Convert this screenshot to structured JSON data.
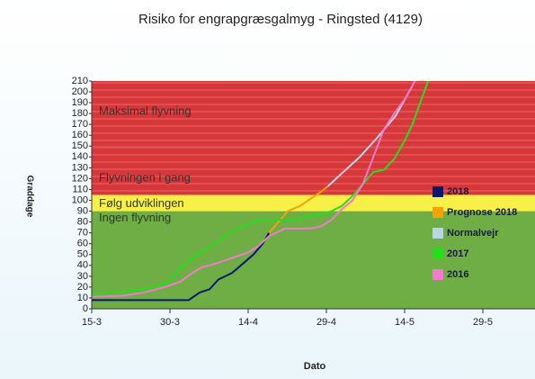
{
  "chart_data": {
    "type": "line",
    "title": "Risiko for engrapgræsgalmyg - Ringsted (4129)",
    "y_label": "Graddage",
    "x_label": "Dato",
    "xlim": [
      0,
      85
    ],
    "xticks": [
      {
        "value": 0,
        "label": "15-3"
      },
      {
        "value": 15,
        "label": "30-3"
      },
      {
        "value": 30,
        "label": "14-4"
      },
      {
        "value": 45,
        "label": "29-4"
      },
      {
        "value": 60,
        "label": "14-5"
      },
      {
        "value": 75,
        "label": "29-5"
      }
    ],
    "ylim": [
      0,
      210
    ],
    "yticks": [
      0,
      10,
      20,
      30,
      40,
      50,
      60,
      70,
      80,
      90,
      100,
      110,
      120,
      130,
      140,
      150,
      160,
      170,
      180,
      190,
      200,
      210
    ],
    "bands": [
      {
        "label": "Ingen flyvning",
        "from": 0,
        "to": 90,
        "color": "#6fae45"
      },
      {
        "label": "Følg udviklingen",
        "from": 90,
        "to": 105,
        "color": "#f7f046"
      },
      {
        "label": "Flyvningen i gang",
        "from": 105,
        "to": 150,
        "color": "#d8373a"
      },
      {
        "label": "Maksimal flyvning",
        "from": 150,
        "to": 210,
        "color": "#d8373a"
      }
    ],
    "series": [
      {
        "name": "2018",
        "color": "#0a1a6e",
        "x": [
          0,
          18.6,
          20.7,
          22.6,
          24.3,
          26.9,
          28.6,
          31,
          32.8,
          34
        ],
        "values": [
          8,
          8,
          15,
          18,
          27,
          33,
          40,
          50,
          60,
          70
        ]
      },
      {
        "name": "Prognose 2018",
        "color": "#f5a300",
        "x": [
          34,
          37.6,
          40,
          44,
          45.3
        ],
        "values": [
          70,
          90,
          95,
          108,
          113
        ]
      },
      {
        "name": "Normalvejr",
        "color": "#b8d6e8",
        "x": [
          45.3,
          48,
          51.4,
          54.8,
          58.3,
          62
        ],
        "values": [
          113,
          125,
          140,
          158,
          178,
          210
        ]
      },
      {
        "name": "2017",
        "color": "#22e01a",
        "x": [
          0,
          5,
          8,
          12,
          15,
          17,
          19,
          21,
          23,
          26,
          28,
          31,
          33,
          39,
          41,
          44,
          46,
          48,
          50,
          52,
          54,
          56,
          58,
          60,
          61.5,
          63,
          64.5
        ],
        "values": [
          14,
          15,
          17,
          20,
          25,
          38,
          46,
          52,
          58,
          68,
          74,
          80,
          82,
          82,
          85,
          87,
          90,
          95,
          104,
          115,
          126,
          128,
          138,
          155,
          170,
          190,
          210
        ]
      },
      {
        "name": "2016",
        "color": "#f07ad0",
        "x": [
          0,
          6,
          10,
          14,
          17,
          19,
          21,
          24,
          27,
          30,
          32,
          34,
          37,
          42,
          44,
          46,
          48,
          50,
          52,
          54,
          56,
          58,
          60,
          62
        ],
        "values": [
          11,
          12,
          15,
          20,
          25,
          32,
          38,
          42,
          47,
          52,
          58,
          67,
          74,
          74,
          76,
          82,
          92,
          100,
          115,
          140,
          165,
          180,
          193,
          210
        ]
      }
    ]
  }
}
